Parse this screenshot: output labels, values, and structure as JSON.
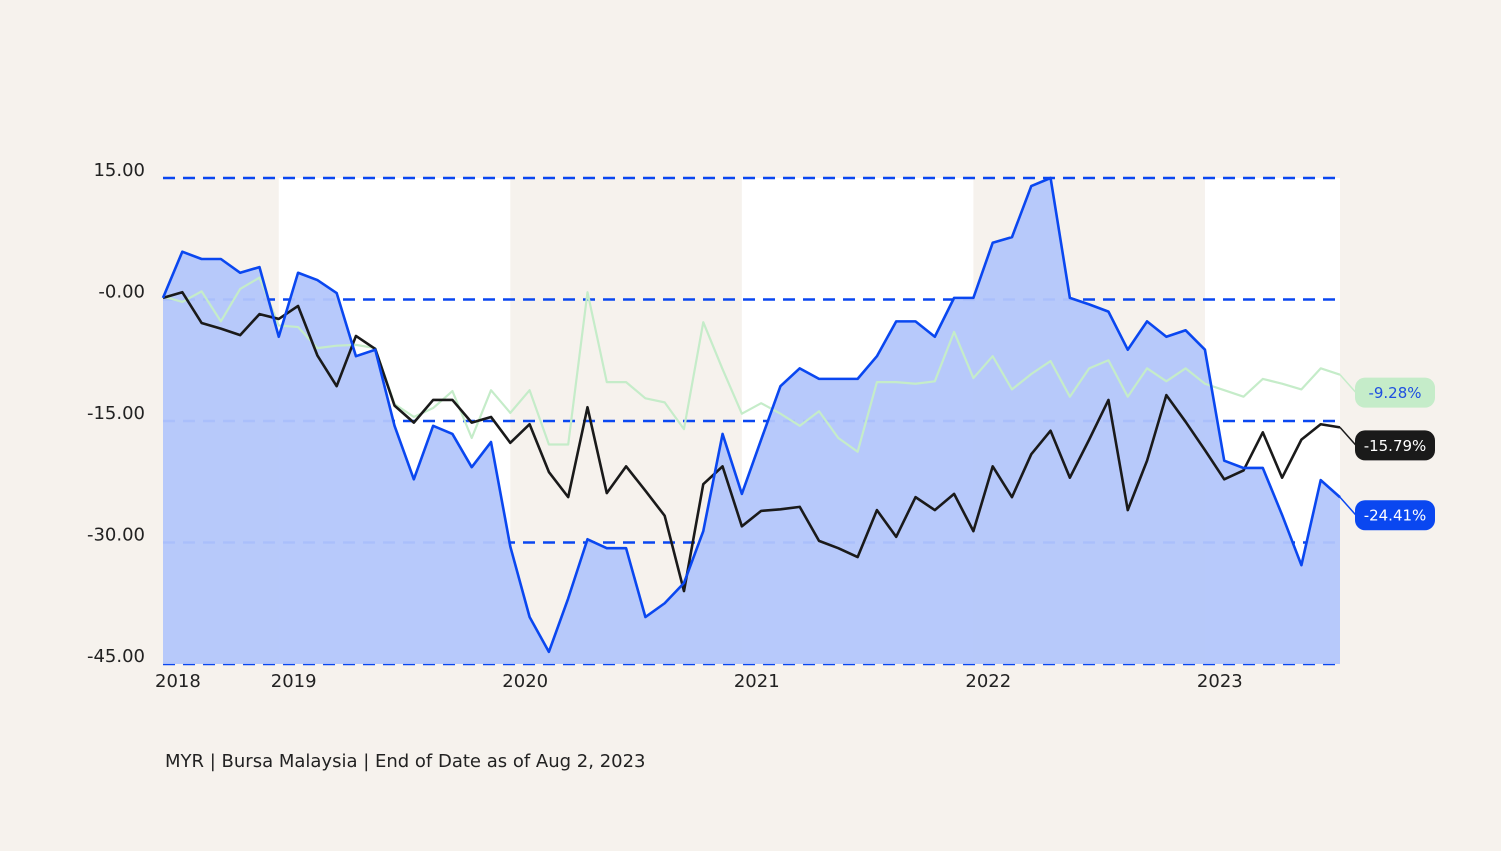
{
  "chart_data": {
    "type": "line",
    "footnote": "MYR | Bursa Malaysia | End of Date as of Aug 2, 2023",
    "categories": [
      "2018",
      null,
      null,
      null,
      null,
      null,
      "2019",
      null,
      null,
      null,
      null,
      null,
      null,
      null,
      null,
      null,
      null,
      null,
      "2020",
      null,
      null,
      null,
      null,
      null,
      null,
      null,
      null,
      null,
      null,
      null,
      "2021",
      null,
      null,
      null,
      null,
      null,
      null,
      null,
      null,
      null,
      null,
      null,
      "2022",
      null,
      null,
      null,
      null,
      null,
      null,
      null,
      null,
      null,
      null,
      null,
      "2023",
      null,
      null,
      null,
      null,
      null,
      null,
      null
    ],
    "ylim": [
      -45,
      15
    ],
    "yticks": [
      {
        "value": 15,
        "label": "15.00"
      },
      {
        "value": 0,
        "label": "-0.00"
      },
      {
        "value": -15,
        "label": "-15.00"
      },
      {
        "value": -30,
        "label": "-30.00"
      },
      {
        "value": -45,
        "label": "-45.00"
      }
    ],
    "grid": true,
    "series": [
      {
        "color": "#0a47f0",
        "fill": "#b3c6fb",
        "label_text_color": "#ffffff",
        "values": [
          0.2,
          5.9,
          5,
          5,
          3.3,
          4,
          -4.6,
          3.3,
          2.4,
          0.8,
          -7,
          -6.2,
          -15.6,
          -22.2,
          -15.6,
          -16.6,
          -20.7,
          -17.6,
          -30.5,
          -39.2,
          -43.5,
          -36.9,
          -29.6,
          -30.7,
          -30.7,
          -39.2,
          -37.5,
          -35,
          -28.6,
          -16.6,
          -24,
          -17.3,
          -10.7,
          -8.5,
          -9.8,
          -9.8,
          -9.8,
          -7,
          -2.7,
          -2.7,
          -4.6,
          0.2,
          0.2,
          7,
          7.7,
          14,
          15,
          0.2,
          -0.6,
          -1.5,
          -6.2,
          -2.7,
          -4.6,
          -3.8,
          -6.2,
          -19.9,
          -20.8,
          -20.8,
          -26.6,
          -32.8,
          -22.3,
          -24.41
        ],
        "value_labels": [
          null,
          null,
          null,
          null,
          null,
          null,
          null,
          null,
          null,
          null,
          null,
          null,
          null,
          null,
          null,
          null,
          null,
          null,
          null,
          null,
          null,
          null,
          null,
          null,
          null,
          null,
          null,
          null,
          null,
          null,
          null,
          null,
          null,
          null,
          null,
          null,
          null,
          null,
          null,
          null,
          null,
          null,
          null,
          null,
          null,
          null,
          null,
          null,
          null,
          null,
          null,
          null,
          null,
          null,
          null,
          null,
          null,
          null,
          null,
          null,
          null,
          "-24.41%"
        ]
      },
      {
        "color": "#1a1a1a",
        "label_text_color": "#ffffff",
        "values": [
          0.2,
          0.9,
          -2.9,
          -3.6,
          -4.4,
          -1.8,
          -2.4,
          -0.8,
          -6.9,
          -10.7,
          -4.5,
          -6.1,
          -13.1,
          -15.2,
          -12.4,
          -12.4,
          -15.2,
          -14.5,
          -17.7,
          -15.4,
          -21.3,
          -24.4,
          -13.3,
          -23.9,
          -20.6,
          -23.6,
          -26.7,
          -36,
          -22.8,
          -20.6,
          -28,
          -26.1,
          -25.9,
          -25.6,
          -29.8,
          -30.7,
          -31.8,
          -26,
          -29.3,
          -24.4,
          -26,
          -24,
          -28.6,
          -20.6,
          -24.4,
          -19.1,
          -16.2,
          -22,
          -17.3,
          -12.4,
          -26,
          -19.9,
          -11.8,
          -15.1,
          -18.6,
          -22.2,
          -21.1,
          -16.4,
          -22,
          -17.3,
          -15.4,
          -15.79
        ],
        "value_labels": [
          null,
          null,
          null,
          null,
          null,
          null,
          null,
          null,
          null,
          null,
          null,
          null,
          null,
          null,
          null,
          null,
          null,
          null,
          null,
          null,
          null,
          null,
          null,
          null,
          null,
          null,
          null,
          null,
          null,
          null,
          null,
          null,
          null,
          null,
          null,
          null,
          null,
          null,
          null,
          null,
          null,
          null,
          null,
          null,
          null,
          null,
          null,
          null,
          null,
          null,
          null,
          null,
          null,
          null,
          null,
          null,
          null,
          null,
          null,
          null,
          null,
          "-15.79%"
        ]
      },
      {
        "color": "#c5ecc9",
        "label_text_color": "#1f4fe0",
        "values": [
          0.4,
          -0.3,
          1,
          -2.7,
          1.3,
          2.7,
          -3.2,
          -3.4,
          -6,
          -5.7,
          -5.6,
          -6,
          -12.9,
          -14.5,
          -13.4,
          -11.3,
          -17.1,
          -11.2,
          -14,
          -11.2,
          -17.9,
          -17.9,
          0.9,
          -10.2,
          -10.2,
          -12.2,
          -12.7,
          -16,
          -2.8,
          -8.6,
          -14.1,
          -12.8,
          -14.1,
          -15.6,
          -13.8,
          -17.1,
          -18.8,
          -10.2,
          -10.2,
          -10.4,
          -10.1,
          -4,
          -9.7,
          -7,
          -11.1,
          -9.2,
          -7.6,
          -12,
          -8.5,
          -7.5,
          -12,
          -8.5,
          -10.1,
          -8.5,
          -10.4,
          -11.2,
          -12,
          -9.8,
          -10.4,
          -11.1,
          -8.5,
          -9.28
        ],
        "value_labels": [
          null,
          null,
          null,
          null,
          null,
          null,
          null,
          null,
          null,
          null,
          null,
          null,
          null,
          null,
          null,
          null,
          null,
          null,
          null,
          null,
          null,
          null,
          null,
          null,
          null,
          null,
          null,
          null,
          null,
          null,
          null,
          null,
          null,
          null,
          null,
          null,
          null,
          null,
          null,
          null,
          null,
          null,
          null,
          null,
          null,
          null,
          null,
          null,
          null,
          null,
          null,
          null,
          null,
          null,
          null,
          null,
          null,
          null,
          null,
          null,
          null,
          "-9.28%"
        ]
      }
    ]
  }
}
